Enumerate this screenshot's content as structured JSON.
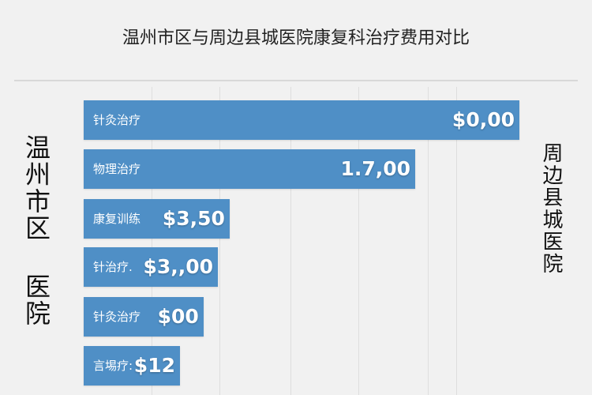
{
  "chart_data": {
    "type": "bar",
    "orientation": "horizontal",
    "title": "温州市区与周边县城医院康复科治疗费用对比",
    "left_label": "温州市区 医院",
    "right_label": "周边县城医院",
    "categories": [
      "针灸治疗",
      "物理治疗",
      "康复训练",
      "针治疗.",
      "针灸治疗",
      "言埸疗:"
    ],
    "value_labels": [
      "$0,00",
      "1.7,00",
      "$3,50",
      "$3,,00",
      "$00",
      "$12"
    ],
    "relative_values": [
      1.0,
      0.761,
      0.335,
      0.308,
      0.275,
      0.221
    ],
    "grid": true,
    "legend": "none",
    "bar_color": "#4f8fc6"
  }
}
